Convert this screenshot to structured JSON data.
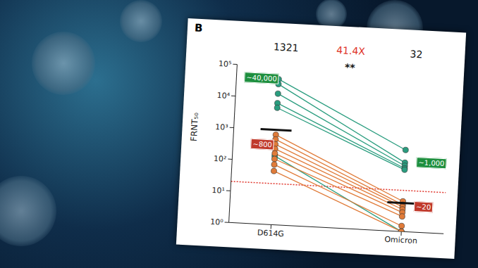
{
  "chart_data": {
    "type": "line",
    "panel_label": "B",
    "y_label": "FRNT₅₀",
    "categories": [
      "D614G",
      "Omicron"
    ],
    "log": "y",
    "ylim": [
      1,
      100000
    ],
    "yticks": [
      {
        "value": 1,
        "label": "10⁰"
      },
      {
        "value": 10,
        "label": "10¹"
      },
      {
        "value": 100,
        "label": "10²"
      },
      {
        "value": 1000,
        "label": "10³"
      },
      {
        "value": 10000,
        "label": "10⁴"
      },
      {
        "value": 100000,
        "label": "10⁵"
      }
    ],
    "marker": "circle",
    "series": [
      {
        "color": "#2a9d7f",
        "values": [
          40000,
          380
        ]
      },
      {
        "color": "#2a9d7f",
        "values": [
          28000,
          150
        ]
      },
      {
        "color": "#2a9d7f",
        "values": [
          14000,
          120
        ]
      },
      {
        "color": "#2a9d7f",
        "values": [
          7000,
          100
        ]
      },
      {
        "color": "#2a9d7f",
        "values": [
          5000,
          90
        ]
      },
      {
        "color": "#2a9d7f",
        "values": [
          150,
          1
        ]
      },
      {
        "color": "#e07b39",
        "values": [
          700,
          9
        ]
      },
      {
        "color": "#e07b39",
        "values": [
          500,
          7
        ]
      },
      {
        "color": "#e07b39",
        "values": [
          350,
          6
        ]
      },
      {
        "color": "#e07b39",
        "values": [
          250,
          5
        ]
      },
      {
        "color": "#e07b39",
        "values": [
          180,
          4
        ]
      },
      {
        "color": "#e07b39",
        "values": [
          120,
          3
        ]
      },
      {
        "color": "#e07b39",
        "values": [
          80,
          1.5
        ]
      },
      {
        "color": "#e07b39",
        "values": [
          50,
          1
        ]
      }
    ],
    "mean_bars": [
      1000,
      8
    ],
    "reference_line": 20,
    "reference_color": "#e0352b",
    "annotations": {
      "group_means": [
        "1321",
        "32"
      ],
      "fold_change": "41.4X",
      "fold_change_color": "#e0352b",
      "significance": "**",
      "boxes": [
        {
          "text": "~40,000",
          "color": "#1e8f3e"
        },
        {
          "text": "~800",
          "color": "#c0392b"
        },
        {
          "text": "~1,000",
          "color": "#1e8f3e"
        },
        {
          "text": "~20",
          "color": "#c0392b"
        }
      ]
    }
  }
}
